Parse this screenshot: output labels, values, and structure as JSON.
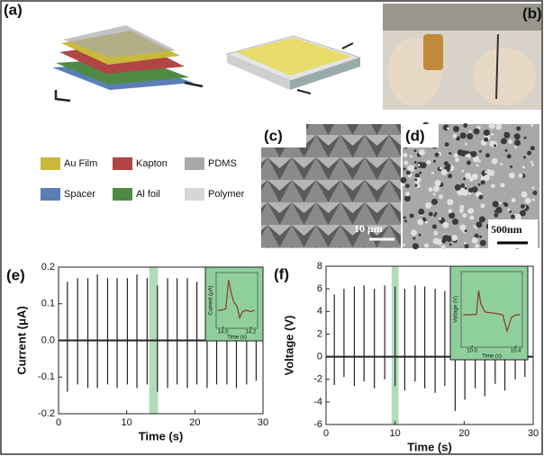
{
  "panels": {
    "a": {
      "label": "(a)"
    },
    "b": {
      "label": "(b)"
    },
    "c": {
      "label": "(c)",
      "scale_bar": "10 μm"
    },
    "d": {
      "label": "(d)",
      "scale_bar": "500nm"
    }
  },
  "legend": [
    {
      "name": "Au Film",
      "color": "#c9b83a"
    },
    {
      "name": "Kapton",
      "color": "#b04545"
    },
    {
      "name": "PDMS",
      "color": "#a9a9a9"
    },
    {
      "name": "Spacer",
      "color": "#5a7fb5"
    },
    {
      "name": "Al foil",
      "color": "#4f8a45"
    },
    {
      "name": "Polymer",
      "color": "#d6d6d6"
    }
  ],
  "chart_data": [
    {
      "type": "spikes",
      "panel_label": "(e)",
      "xlabel": "Time (s)",
      "ylabel": "Current (μA)",
      "xlim": [
        0,
        30
      ],
      "xticks": [
        0,
        10,
        20,
        30
      ],
      "ylim": [
        -0.2,
        0.2
      ],
      "yticks": [
        -0.2,
        -0.1,
        {
          "value": 0,
          "label": "0.0"
        },
        0.1,
        0.2
      ],
      "highlight": [
        13.3,
        14.6
      ],
      "x": [
        1.3,
        2.8,
        4.3,
        5.7,
        7.2,
        8.6,
        10.1,
        11.5,
        13.0,
        14.5,
        16.0,
        17.4,
        18.9,
        20.3,
        21.8,
        23.2,
        24.7,
        26.1,
        27.6,
        29.0
      ],
      "series": [
        {
          "color": "#222",
          "values": [
            0.16,
            0.17,
            0.17,
            0.18,
            0.17,
            0.17,
            0.17,
            0.18,
            0.17,
            0.15,
            0.17,
            0.17,
            0.17,
            0.16,
            0.17,
            0.17,
            0.17,
            0.16,
            0.17,
            0.17
          ]
        },
        {
          "color": "#222",
          "values": [
            -0.14,
            -0.12,
            -0.13,
            -0.13,
            -0.12,
            -0.13,
            -0.12,
            -0.13,
            -0.12,
            -0.14,
            -0.13,
            -0.12,
            -0.13,
            -0.12,
            -0.13,
            -0.12,
            -0.12,
            -0.13,
            -0.12,
            -0.11
          ]
        }
      ],
      "inset": {
        "xlabel": "Time (s)",
        "ylabel": "Current (μA)",
        "xlim": [
          13.95,
          14.25
        ],
        "xticks": [
          {
            "value": 14.0,
            "label": "14.0"
          },
          14.2
        ],
        "ylim": [
          -0.15,
          0.22
        ],
        "color": "#8b3a2a",
        "x": [
          13.96,
          13.99,
          14.02,
          14.04,
          14.06,
          14.08,
          14.1,
          14.12,
          14.14,
          14.17,
          14.2,
          14.23
        ],
        "values": [
          -0.03,
          -0.03,
          -0.02,
          0.17,
          0.08,
          0.02,
          0.0,
          -0.08,
          -0.04,
          -0.03,
          -0.04,
          -0.03
        ]
      }
    },
    {
      "type": "spikes",
      "panel_label": "(f)",
      "xlabel": "Time (s)",
      "ylabel": "Voltage (V)",
      "xlim": [
        0,
        30
      ],
      "xticks": [
        0,
        10,
        20,
        30
      ],
      "ylim": [
        -6,
        8
      ],
      "yticks": [
        -6,
        -4,
        -2,
        0,
        2,
        4,
        6,
        8
      ],
      "highlight": [
        9.5,
        10.5
      ],
      "x": [
        1.2,
        2.6,
        4.1,
        5.5,
        7.0,
        8.5,
        10.0,
        11.4,
        12.9,
        14.3,
        15.8,
        17.2,
        18.7,
        20.1,
        21.6,
        23.0,
        24.5,
        25.9,
        27.4,
        28.8
      ],
      "series": [
        {
          "color": "#222",
          "values": [
            5.5,
            6.0,
            6.2,
            6.3,
            6.0,
            6.3,
            6.2,
            6.0,
            6.3,
            6.2,
            6.0,
            5.8,
            6.3,
            6.4,
            6.0,
            6.2,
            6.5,
            6.2,
            6.0,
            5.5
          ]
        },
        {
          "color": "#222",
          "values": [
            -2.5,
            -1.8,
            -2.6,
            -2.2,
            -2.8,
            -2.0,
            -2.6,
            -3.0,
            -2.2,
            -2.8,
            -3.2,
            -2.6,
            -4.8,
            -3.8,
            -2.8,
            -3.5,
            -2.4,
            -3.0,
            -2.0,
            -1.8
          ]
        }
      ],
      "inset": {
        "xlabel": "Time (s)",
        "ylabel": "Voltage (V)",
        "xlim": [
          9.9,
          10.46
        ],
        "xticks": [
          {
            "value": 10.0,
            "label": "10.0"
          },
          10.4
        ],
        "ylim": [
          -6,
          8
        ],
        "color": "#8b3a2a",
        "x": [
          9.92,
          9.98,
          10.04,
          10.06,
          10.08,
          10.12,
          10.2,
          10.28,
          10.32,
          10.36,
          10.4,
          10.44
        ],
        "values": [
          0,
          0,
          0.1,
          4.5,
          2,
          0.5,
          0.3,
          0,
          -3,
          -0.5,
          0,
          0
        ]
      }
    }
  ]
}
